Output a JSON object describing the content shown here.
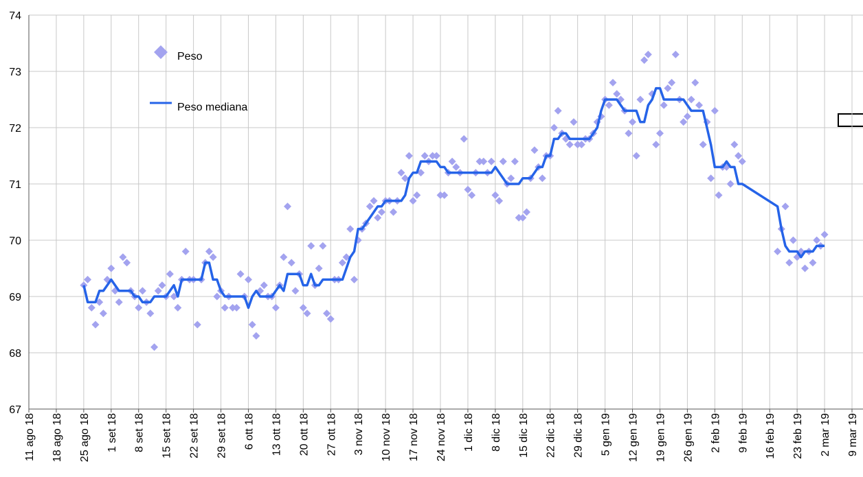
{
  "chart_data": {
    "type": "scatter-line",
    "xlim": [
      "2018-08-11",
      "2019-03-09"
    ],
    "xticks": [
      {
        "value": "2018-08-11",
        "label": "11 ago 18"
      },
      {
        "value": "2018-08-18",
        "label": "18 ago 18"
      },
      {
        "value": "2018-08-25",
        "label": "25 ago 18"
      },
      {
        "value": "2018-09-01",
        "label": "1 set 18"
      },
      {
        "value": "2018-09-08",
        "label": "8 set 18"
      },
      {
        "value": "2018-09-15",
        "label": "15 set 18"
      },
      {
        "value": "2018-09-22",
        "label": "22 set 18"
      },
      {
        "value": "2018-09-29",
        "label": "29 set 18"
      },
      {
        "value": "2018-10-06",
        "label": "6 ott 18"
      },
      {
        "value": "2018-10-13",
        "label": "13 ott 18"
      },
      {
        "value": "2018-10-20",
        "label": "20 ott 18"
      },
      {
        "value": "2018-10-27",
        "label": "27 ott 18"
      },
      {
        "value": "2018-11-03",
        "label": "3 nov 18"
      },
      {
        "value": "2018-11-10",
        "label": "10 nov 18"
      },
      {
        "value": "2018-11-17",
        "label": "17 nov 18"
      },
      {
        "value": "2018-11-24",
        "label": "24 nov 18"
      },
      {
        "value": "2018-12-01",
        "label": "1 dic 18"
      },
      {
        "value": "2018-12-08",
        "label": "8 dic 18"
      },
      {
        "value": "2018-12-15",
        "label": "15 dic 18"
      },
      {
        "value": "2018-12-22",
        "label": "22 dic 18"
      },
      {
        "value": "2018-12-29",
        "label": "29 dic 18"
      },
      {
        "value": "2019-01-05",
        "label": "5 gen 19"
      },
      {
        "value": "2019-01-12",
        "label": "12 gen 19"
      },
      {
        "value": "2019-01-19",
        "label": "19 gen 19"
      },
      {
        "value": "2019-01-26",
        "label": "26 gen 19"
      },
      {
        "value": "2019-02-02",
        "label": "2 feb 19"
      },
      {
        "value": "2019-02-09",
        "label": "9 feb 19"
      },
      {
        "value": "2019-02-16",
        "label": "16 feb 19"
      },
      {
        "value": "2019-02-23",
        "label": "23 feb 19"
      },
      {
        "value": "2019-03-02",
        "label": "2 mar 19"
      },
      {
        "value": "2019-03-09",
        "label": "9 mar 19"
      }
    ],
    "ylim": [
      67,
      74
    ],
    "yticks": [
      67,
      68,
      69,
      70,
      71,
      72,
      73,
      74
    ],
    "grid": true,
    "x": [
      "2018-08-25",
      "2018-08-26",
      "2018-08-27",
      "2018-08-28",
      "2018-08-29",
      "2018-08-30",
      "2018-08-31",
      "2018-09-01",
      "2018-09-02",
      "2018-09-03",
      "2018-09-04",
      "2018-09-05",
      "2018-09-06",
      "2018-09-07",
      "2018-09-08",
      "2018-09-09",
      "2018-09-10",
      "2018-09-11",
      "2018-09-12",
      "2018-09-13",
      "2018-09-14",
      "2018-09-15",
      "2018-09-16",
      "2018-09-17",
      "2018-09-18",
      "2018-09-19",
      "2018-09-20",
      "2018-09-21",
      "2018-09-22",
      "2018-09-23",
      "2018-09-24",
      "2018-09-25",
      "2018-09-26",
      "2018-09-27",
      "2018-09-28",
      "2018-09-29",
      "2018-09-30",
      "2018-10-01",
      "2018-10-02",
      "2018-10-03",
      "2018-10-04",
      "2018-10-05",
      "2018-10-06",
      "2018-10-07",
      "2018-10-08",
      "2018-10-09",
      "2018-10-10",
      "2018-10-11",
      "2018-10-12",
      "2018-10-13",
      "2018-10-14",
      "2018-10-15",
      "2018-10-16",
      "2018-10-17",
      "2018-10-18",
      "2018-10-19",
      "2018-10-20",
      "2018-10-21",
      "2018-10-22",
      "2018-10-23",
      "2018-10-24",
      "2018-10-25",
      "2018-10-26",
      "2018-10-27",
      "2018-10-28",
      "2018-10-29",
      "2018-10-30",
      "2018-10-31",
      "2018-11-01",
      "2018-11-02",
      "2018-11-03",
      "2018-11-04",
      "2018-11-05",
      "2018-11-06",
      "2018-11-07",
      "2018-11-08",
      "2018-11-09",
      "2018-11-10",
      "2018-11-11",
      "2018-11-12",
      "2018-11-13",
      "2018-11-14",
      "2018-11-15",
      "2018-11-16",
      "2018-11-17",
      "2018-11-18",
      "2018-11-19",
      "2018-11-20",
      "2018-11-21",
      "2018-11-22",
      "2018-11-23",
      "2018-11-24",
      "2018-11-25",
      "2018-11-26",
      "2018-11-27",
      "2018-11-28",
      "2018-11-29",
      "2018-11-30",
      "2018-12-01",
      "2018-12-02",
      "2018-12-03",
      "2018-12-04",
      "2018-12-05",
      "2018-12-06",
      "2018-12-07",
      "2018-12-08",
      "2018-12-09",
      "2018-12-10",
      "2018-12-11",
      "2018-12-12",
      "2018-12-13",
      "2018-12-14",
      "2018-12-15",
      "2018-12-16",
      "2018-12-17",
      "2018-12-18",
      "2018-12-19",
      "2018-12-20",
      "2018-12-21",
      "2018-12-22",
      "2018-12-23",
      "2018-12-24",
      "2018-12-25",
      "2018-12-26",
      "2018-12-27",
      "2018-12-28",
      "2018-12-29",
      "2018-12-30",
      "2018-12-31",
      "2019-01-01",
      "2019-01-02",
      "2019-01-03",
      "2019-01-04",
      "2019-01-05",
      "2019-01-06",
      "2019-01-07",
      "2019-01-08",
      "2019-01-09",
      "2019-01-10",
      "2019-01-11",
      "2019-01-12",
      "2019-01-13",
      "2019-01-14",
      "2019-01-15",
      "2019-01-16",
      "2019-01-17",
      "2019-01-18",
      "2019-01-19",
      "2019-01-20",
      "2019-01-21",
      "2019-01-22",
      "2019-01-23",
      "2019-01-24",
      "2019-01-25",
      "2019-01-26",
      "2019-01-27",
      "2019-01-28",
      "2019-01-29",
      "2019-01-30",
      "2019-01-31",
      "2019-02-01",
      "2019-02-02",
      "2019-02-03",
      "2019-02-04",
      "2019-02-05",
      "2019-02-06",
      "2019-02-07",
      "2019-02-08",
      "2019-02-09",
      "2019-02-18",
      "2019-02-19",
      "2019-02-20",
      "2019-02-21",
      "2019-02-22",
      "2019-02-23",
      "2019-02-24",
      "2019-02-25",
      "2019-02-26",
      "2019-02-27",
      "2019-02-28",
      "2019-03-01",
      "2019-03-02"
    ],
    "series": [
      {
        "name": "Peso",
        "kind": "scatter",
        "color": "#a3a3ef",
        "values": [
          69.2,
          69.3,
          68.8,
          68.5,
          68.9,
          68.7,
          69.3,
          69.5,
          69.1,
          68.9,
          69.7,
          69.6,
          69.1,
          69.0,
          68.8,
          69.1,
          68.9,
          68.7,
          68.1,
          69.1,
          69.2,
          69.0,
          69.4,
          69.0,
          68.8,
          69.3,
          69.8,
          69.3,
          69.3,
          68.5,
          69.3,
          69.6,
          69.8,
          69.7,
          69.0,
          69.1,
          68.8,
          69.0,
          68.8,
          68.8,
          69.4,
          69.0,
          69.3,
          68.5,
          68.3,
          69.1,
          69.2,
          69.0,
          69.0,
          68.8,
          69.2,
          69.7,
          70.6,
          69.6,
          69.1,
          69.4,
          68.8,
          68.7,
          69.9,
          69.2,
          69.5,
          69.9,
          68.7,
          68.6,
          69.3,
          69.3,
          69.6,
          69.7,
          70.2,
          69.3,
          70.0,
          70.2,
          70.3,
          70.6,
          70.7,
          70.4,
          70.5,
          70.7,
          70.7,
          70.5,
          70.7,
          71.2,
          71.1,
          71.5,
          70.7,
          70.8,
          71.2,
          71.5,
          71.4,
          71.5,
          71.5,
          70.8,
          70.8,
          71.2,
          71.4,
          71.3,
          71.2,
          71.8,
          70.9,
          70.8,
          71.2,
          71.4,
          71.4,
          71.2,
          71.4,
          70.8,
          70.7,
          71.4,
          71.0,
          71.1,
          71.4,
          70.4,
          70.4,
          70.5,
          71.1,
          71.6,
          71.3,
          71.1,
          71.5,
          71.5,
          72.0,
          72.3,
          71.9,
          71.8,
          71.7,
          72.1,
          71.7,
          71.7,
          71.8,
          71.8,
          71.9,
          72.1,
          72.2,
          72.5,
          72.4,
          72.8,
          72.6,
          72.5,
          72.3,
          71.9,
          72.1,
          71.5,
          72.5,
          73.2,
          73.3,
          72.6,
          71.7,
          71.9,
          72.4,
          72.7,
          72.8,
          73.3,
          72.5,
          72.1,
          72.2,
          72.5,
          72.8,
          72.4,
          71.7,
          72.1,
          71.1,
          72.3,
          70.8,
          71.3,
          71.3,
          71.0,
          71.7,
          71.5,
          71.4,
          69.8,
          70.2,
          70.6,
          69.6,
          70.0,
          69.7,
          69.8,
          69.5,
          69.8,
          69.6,
          70.0,
          69.9,
          70.1
        ]
      },
      {
        "name": "Peso mediana",
        "kind": "line",
        "color": "#2563e8",
        "values": [
          69.2,
          68.9,
          68.9,
          68.9,
          69.1,
          69.1,
          69.2,
          69.3,
          69.2,
          69.1,
          69.1,
          69.1,
          69.1,
          69.0,
          69.0,
          68.9,
          68.9,
          68.9,
          69.0,
          69.0,
          69.0,
          69.0,
          69.1,
          69.2,
          69.0,
          69.3,
          69.3,
          69.3,
          69.3,
          69.3,
          69.3,
          69.6,
          69.6,
          69.3,
          69.3,
          69.1,
          69.0,
          69.0,
          69.0,
          69.0,
          69.0,
          69.0,
          68.8,
          69.0,
          69.1,
          69.0,
          69.0,
          69.0,
          69.0,
          69.1,
          69.2,
          69.1,
          69.4,
          69.4,
          69.4,
          69.4,
          69.2,
          69.2,
          69.4,
          69.2,
          69.2,
          69.3,
          69.3,
          69.3,
          69.3,
          69.3,
          69.3,
          69.5,
          69.7,
          69.8,
          70.2,
          70.2,
          70.3,
          70.4,
          70.5,
          70.6,
          70.6,
          70.7,
          70.7,
          70.7,
          70.7,
          70.7,
          70.8,
          71.1,
          71.2,
          71.2,
          71.4,
          71.4,
          71.4,
          71.4,
          71.4,
          71.3,
          71.3,
          71.2,
          71.2,
          71.2,
          71.2,
          71.2,
          71.2,
          71.2,
          71.2,
          71.2,
          71.2,
          71.2,
          71.2,
          71.3,
          71.2,
          71.1,
          71.0,
          71.0,
          71.0,
          71.0,
          71.1,
          71.1,
          71.1,
          71.2,
          71.3,
          71.3,
          71.5,
          71.5,
          71.8,
          71.8,
          71.9,
          71.9,
          71.8,
          71.8,
          71.8,
          71.8,
          71.8,
          71.8,
          71.9,
          72.0,
          72.3,
          72.5,
          72.5,
          72.5,
          72.5,
          72.4,
          72.3,
          72.3,
          72.3,
          72.3,
          72.1,
          72.1,
          72.4,
          72.5,
          72.7,
          72.7,
          72.5,
          72.5,
          72.5,
          72.5,
          72.5,
          72.5,
          72.4,
          72.3,
          72.3,
          72.3,
          72.3,
          72.0,
          71.7,
          71.3,
          71.3,
          71.3,
          71.4,
          71.3,
          71.3,
          71.0,
          71.0,
          70.6,
          70.2,
          69.9,
          69.8,
          69.8,
          69.8,
          69.7,
          69.8,
          69.8,
          69.8,
          69.9,
          69.9,
          69.9
        ]
      }
    ]
  }
}
